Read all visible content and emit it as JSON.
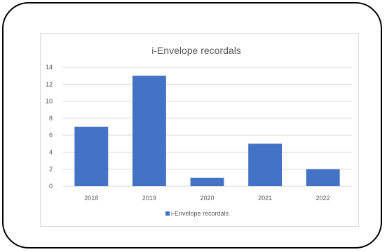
{
  "chart_data": {
    "type": "bar",
    "title": "i-Envelope recordals",
    "categories": [
      "2018",
      "2019",
      "2020",
      "2021",
      "2022"
    ],
    "series": [
      {
        "name": "i-Envelope recordals",
        "values": [
          7,
          13,
          1,
          5,
          2
        ]
      }
    ],
    "xlabel": "",
    "ylabel": "",
    "ylim": [
      0,
      14
    ],
    "yticks": [
      0,
      2,
      4,
      6,
      8,
      10,
      12,
      14
    ],
    "grid": true,
    "legend_position": "bottom",
    "colors": {
      "bar": "#4472c4",
      "grid": "#d9d9d9",
      "text": "#595959"
    }
  }
}
